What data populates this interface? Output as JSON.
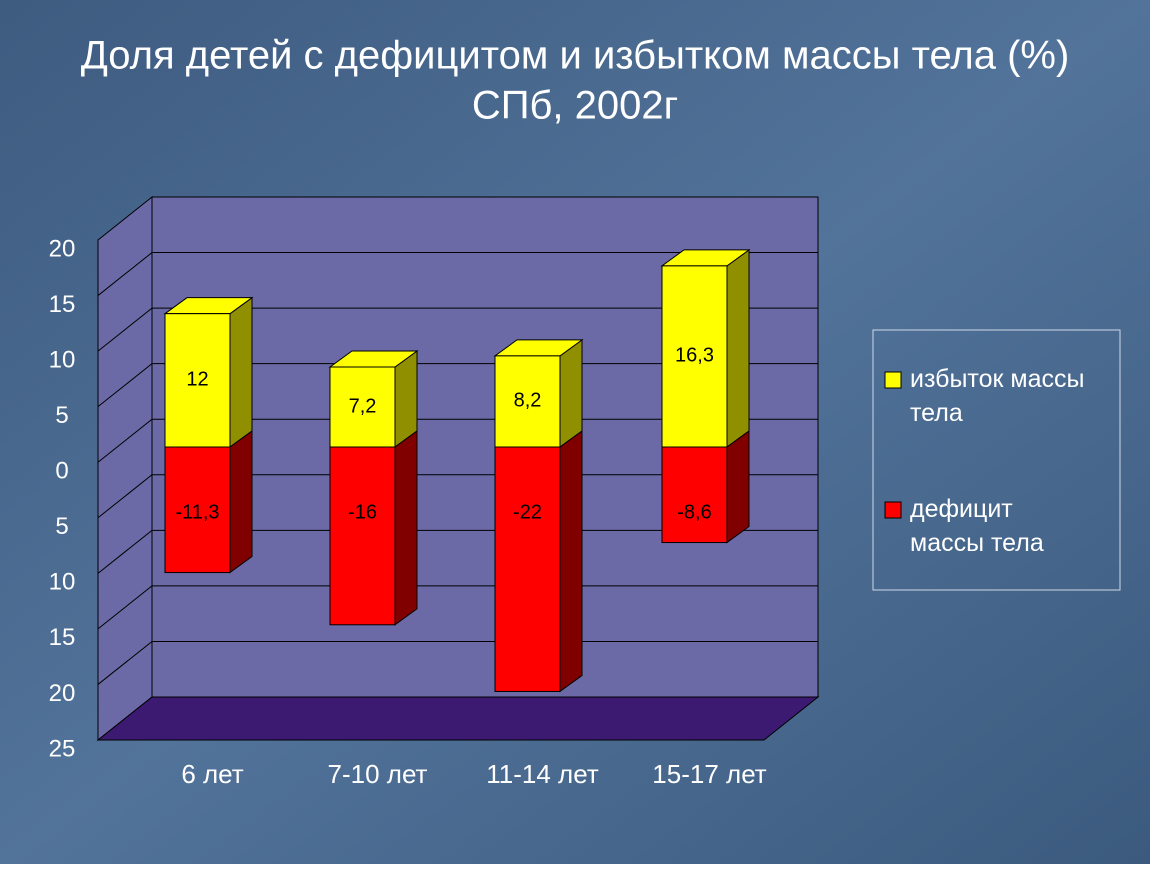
{
  "chart_data": {
    "type": "bar3d_stacked",
    "title": "Доля детей с дефицитом и избытком массы тела (%)",
    "subtitle": "СПб, 2002г",
    "categories": [
      "6 лет",
      "7-10 лет",
      "11-14 лет",
      "15-17 лет"
    ],
    "series": [
      {
        "name": "избыток массы тела",
        "color": "#ffff00",
        "side_color": "#8f8f00",
        "values": [
          12,
          7.2,
          8.2,
          16.3
        ],
        "value_labels": [
          "12",
          "7,2",
          "8,2",
          "16,3"
        ]
      },
      {
        "name": "дефицит массы тела",
        "color": "#ff0000",
        "side_color": "#800000",
        "values": [
          -11.3,
          -16,
          -22,
          -8.6
        ],
        "value_labels": [
          "-11,3",
          "-16",
          "-22",
          "-8,6"
        ]
      }
    ],
    "ylim": [
      -25,
      20
    ],
    "yticks": [
      {
        "value": -25,
        "label": "25"
      },
      {
        "value": -20,
        "label": "20"
      },
      {
        "value": -15,
        "label": "15"
      },
      {
        "value": -10,
        "label": "10"
      },
      {
        "value": -5,
        "label": "5"
      },
      0,
      5,
      10,
      15,
      20
    ],
    "grid": true
  }
}
